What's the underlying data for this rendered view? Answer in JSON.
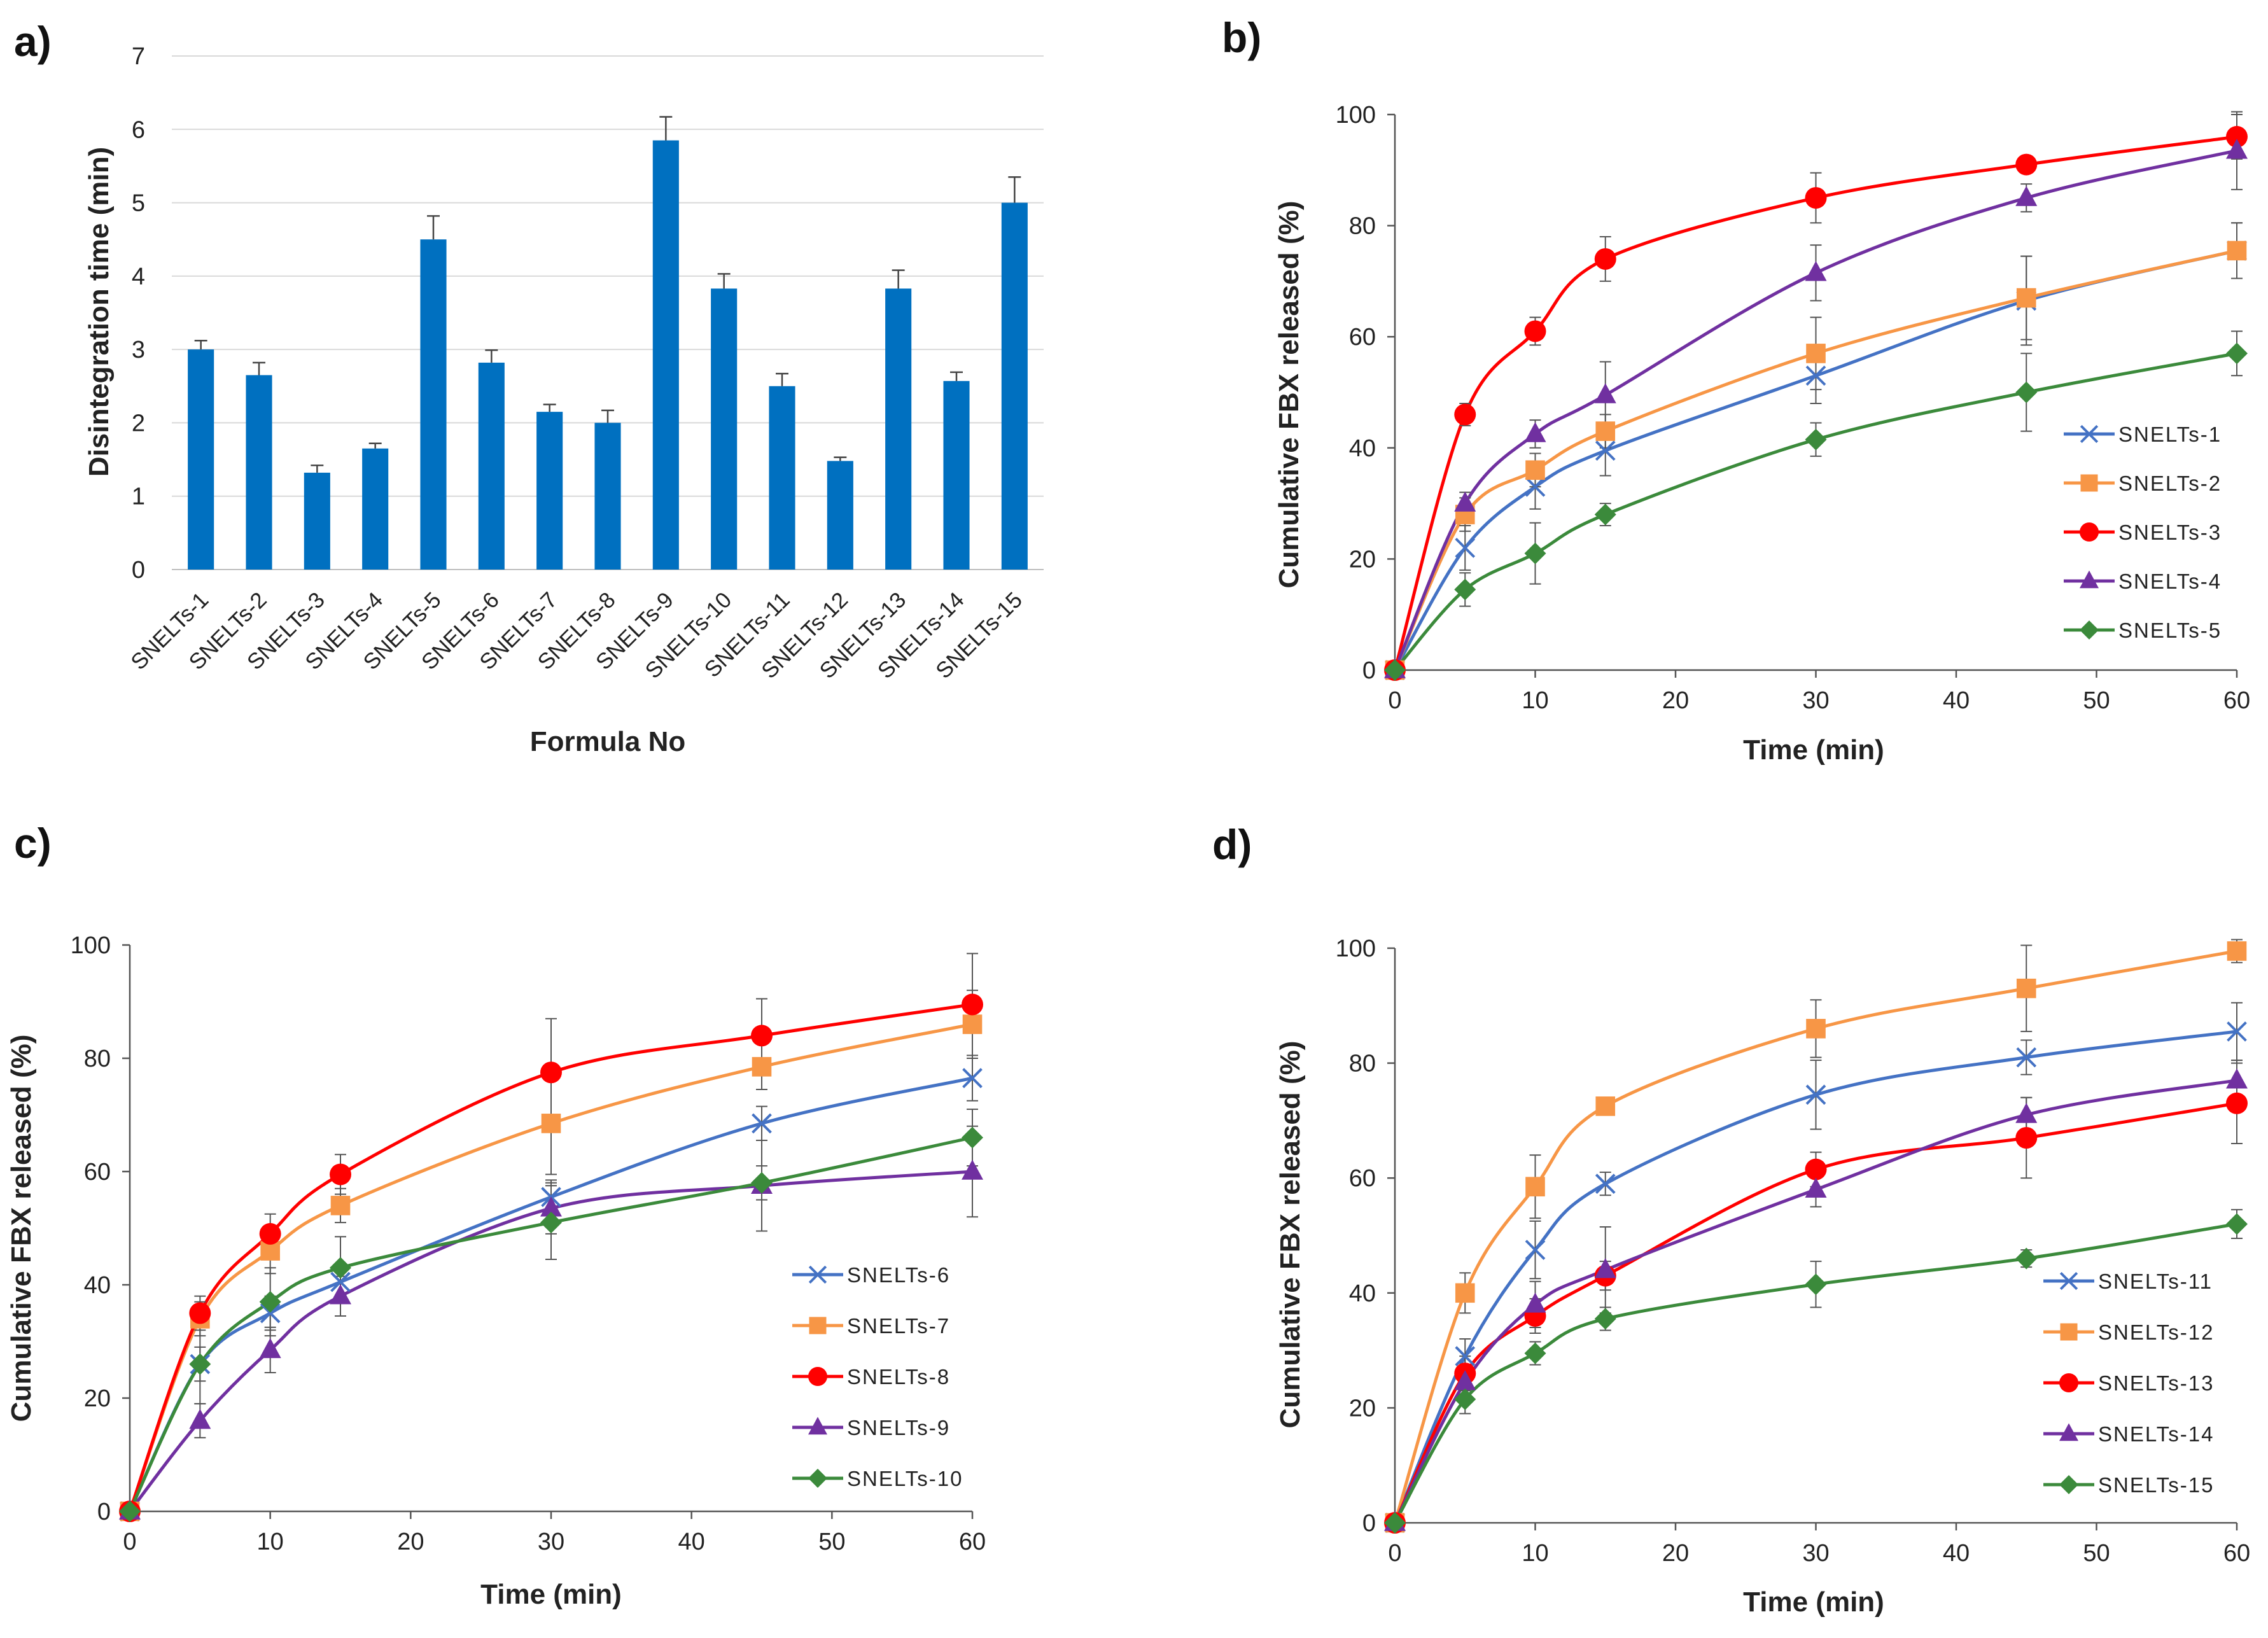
{
  "chart_data": [
    {
      "panel": "a)",
      "type": "bar",
      "title": "",
      "xlabel": "Formula No",
      "ylabel": "Disintegration time (min)",
      "ylim": [
        0,
        7
      ],
      "yticks": [
        0,
        1,
        2,
        3,
        4,
        5,
        6,
        7
      ],
      "grid": true,
      "bar_color": "#0070C0",
      "categories": [
        "SNELTs-1",
        "SNELTs-2",
        "SNELTs-3",
        "SNELTs-4",
        "SNELTs-5",
        "SNELTs-6",
        "SNELTs-7",
        "SNELTs-8",
        "SNELTs-9",
        "SNELTs-10",
        "SNELTs-11",
        "SNELTs-12",
        "SNELTs-13",
        "SNELTs-14",
        "SNELTs-15"
      ],
      "values": [
        3.0,
        2.65,
        1.32,
        1.65,
        4.5,
        2.82,
        2.15,
        2.0,
        5.85,
        3.83,
        2.5,
        1.48,
        3.83,
        2.57,
        5.0
      ],
      "errors": [
        0.12,
        0.17,
        0.1,
        0.07,
        0.32,
        0.17,
        0.1,
        0.17,
        0.32,
        0.2,
        0.17,
        0.05,
        0.25,
        0.12,
        0.35
      ]
    },
    {
      "panel": "b)",
      "type": "line",
      "title": "",
      "xlabel": "Time (min)",
      "ylabel": "Cumulative FBX released (%)",
      "xlim": [
        0,
        60
      ],
      "ylim": [
        0,
        100
      ],
      "xticks": [
        0,
        10,
        20,
        30,
        40,
        50,
        60
      ],
      "yticks": [
        0,
        20,
        40,
        60,
        80,
        100
      ],
      "legend_position": "bottom-right",
      "x": [
        0,
        5,
        10,
        15,
        30,
        45,
        60
      ],
      "series": [
        {
          "name": "SNELTs-1",
          "color": "#4472C4",
          "marker": "x",
          "values": [
            0,
            22,
            33,
            39.5,
            53,
            66.5,
            75.5
          ],
          "errors": [
            0,
            4,
            4,
            4.5,
            5,
            8,
            5
          ]
        },
        {
          "name": "SNELTs-2",
          "color": "#F79646",
          "marker": "square",
          "values": [
            0,
            28,
            36,
            43,
            57,
            67,
            75.5
          ],
          "errors": [
            0,
            3,
            3,
            3,
            6.5,
            7.5,
            5
          ]
        },
        {
          "name": "SNELTs-3",
          "color": "#FF0000",
          "marker": "circle",
          "values": [
            0,
            46,
            61,
            74,
            85,
            91,
            96
          ],
          "errors": [
            0,
            2,
            2.5,
            4,
            4.5,
            1.5,
            4
          ]
        },
        {
          "name": "SNELTs-4",
          "color": "#7030A0",
          "marker": "triangle",
          "values": [
            0,
            30,
            42.5,
            49.5,
            71.5,
            85,
            93.5
          ],
          "errors": [
            0,
            2,
            2.5,
            6,
            5,
            2.5,
            7
          ]
        },
        {
          "name": "SNELTs-5",
          "color": "#3B8A3B",
          "marker": "diamond",
          "values": [
            0,
            14.5,
            21,
            28,
            41.5,
            50,
            57
          ],
          "errors": [
            0,
            3,
            5.5,
            2,
            3,
            7,
            4
          ]
        }
      ]
    },
    {
      "panel": "c)",
      "type": "line",
      "title": "",
      "xlabel": "Time (min)",
      "ylabel": "Cumulative FBX released (%)",
      "xlim": [
        0,
        60
      ],
      "ylim": [
        0,
        100
      ],
      "xticks": [
        0,
        10,
        20,
        30,
        40,
        50,
        60
      ],
      "yticks": [
        0,
        20,
        40,
        60,
        80,
        100
      ],
      "legend_position": "bottom-right",
      "x": [
        0,
        5,
        10,
        15,
        30,
        45,
        60
      ],
      "series": [
        {
          "name": "SNELTs-6",
          "color": "#4472C4",
          "marker": "x",
          "values": [
            0,
            26,
            35,
            40.5,
            55.5,
            68.5,
            76.5
          ],
          "errors": [
            0,
            3,
            3,
            3,
            3,
            3,
            4
          ]
        },
        {
          "name": "SNELTs-7",
          "color": "#F79646",
          "marker": "square",
          "values": [
            0,
            34,
            46,
            54,
            68.5,
            78.5,
            86
          ],
          "errors": [
            0,
            3,
            4,
            3,
            9,
            4,
            6
          ]
        },
        {
          "name": "SNELTs-8",
          "color": "#FF0000",
          "marker": "circle",
          "values": [
            0,
            35,
            49,
            59.5,
            77.5,
            84,
            89.5
          ],
          "errors": [
            0,
            3,
            3.5,
            3.5,
            9.5,
            6.5,
            9
          ]
        },
        {
          "name": "SNELTs-9",
          "color": "#7030A0",
          "marker": "triangle",
          "values": [
            0,
            16,
            28.5,
            38,
            53.5,
            57.5,
            60
          ],
          "errors": [
            0,
            3,
            4,
            3.5,
            4.5,
            8,
            8
          ]
        },
        {
          "name": "SNELTs-10",
          "color": "#3B8A3B",
          "marker": "diamond",
          "values": [
            0,
            26,
            37,
            43,
            51,
            58,
            66
          ],
          "errors": [
            0,
            7,
            6,
            5.5,
            6.5,
            3,
            5
          ]
        }
      ]
    },
    {
      "panel": "d)",
      "type": "line",
      "title": "",
      "xlabel": "Time (min)",
      "ylabel": "Cumulative FBX released (%)",
      "xlim": [
        0,
        60
      ],
      "ylim": [
        0,
        100
      ],
      "xticks": [
        0,
        10,
        20,
        30,
        40,
        50,
        60
      ],
      "yticks": [
        0,
        20,
        40,
        60,
        80,
        100
      ],
      "legend_position": "bottom-right",
      "x": [
        0,
        5,
        10,
        15,
        30,
        45,
        60
      ],
      "series": [
        {
          "name": "SNELTs-11",
          "color": "#4472C4",
          "marker": "x",
          "values": [
            0,
            29,
            47.5,
            59,
            74.5,
            81,
            85.5
          ],
          "errors": [
            0,
            3,
            5,
            2,
            6,
            3,
            5
          ]
        },
        {
          "name": "SNELTs-12",
          "color": "#F79646",
          "marker": "square",
          "values": [
            0,
            40,
            58.5,
            72.5,
            86,
            93,
            99.5
          ],
          "errors": [
            0,
            3.5,
            5.5,
            1.5,
            5,
            7.5,
            2
          ]
        },
        {
          "name": "SNELTs-13",
          "color": "#FF0000",
          "marker": "circle",
          "values": [
            0,
            26,
            36,
            43,
            61.5,
            67,
            73
          ],
          "errors": [
            0,
            3,
            3,
            2.5,
            3,
            7,
            7
          ]
        },
        {
          "name": "SNELTs-14",
          "color": "#7030A0",
          "marker": "triangle",
          "values": [
            0,
            24.5,
            38,
            44,
            58,
            71,
            77
          ],
          "errors": [
            0,
            2.5,
            4,
            7.5,
            3,
            3,
            3.5
          ]
        },
        {
          "name": "SNELTs-15",
          "color": "#3B8A3B",
          "marker": "diamond",
          "values": [
            0,
            21.5,
            29.5,
            35.5,
            41.5,
            46,
            52
          ],
          "errors": [
            0,
            2.5,
            2,
            2,
            4,
            1.5,
            2.5
          ]
        }
      ]
    }
  ]
}
